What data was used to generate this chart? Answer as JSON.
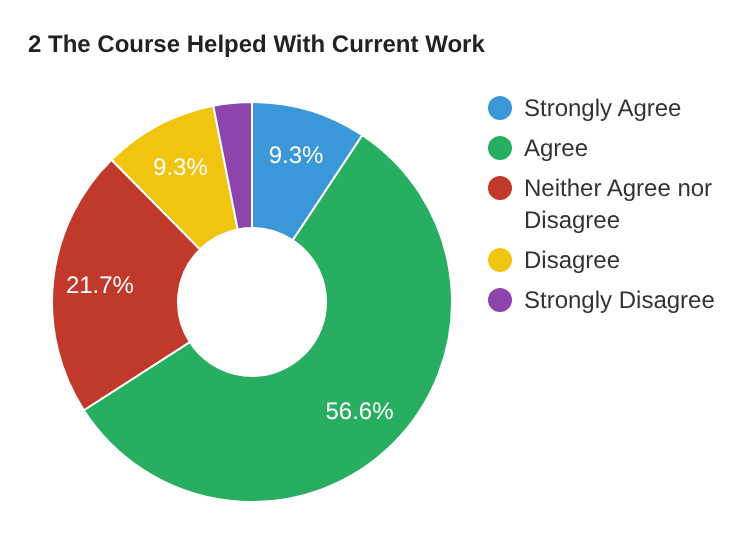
{
  "chart_data": {
    "type": "donut",
    "title": "2 The Course Helped With Current Work",
    "categories": [
      "Strongly Agree",
      "Agree",
      "Neither Agree nor Disagree",
      "Disagree",
      "Strongly Disagree"
    ],
    "values": [
      9.3,
      56.6,
      21.7,
      9.3,
      3.1
    ],
    "colors": [
      "#3a97d8",
      "#27ae60",
      "#c0392b",
      "#f1c40f",
      "#8e44ad"
    ],
    "value_labels": [
      "9.3%",
      "56.6%",
      "21.7%",
      "9.3%",
      null
    ],
    "legend": "right"
  }
}
